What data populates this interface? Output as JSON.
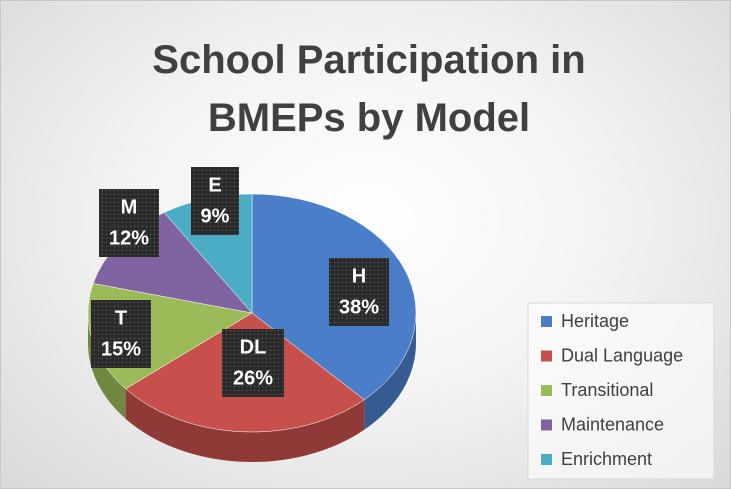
{
  "chart_data": {
    "type": "pie3d",
    "title": "School Participation in BMEPs by Model",
    "categories": [
      "Heritage",
      "Dual Language",
      "Transitional",
      "Maintenance",
      "Enrichment"
    ],
    "data_label_names": [
      "H",
      "DL",
      "T",
      "M",
      "E"
    ],
    "values": [
      38,
      26,
      15,
      12,
      9
    ],
    "value_labels": [
      "38%",
      "26%",
      "15%",
      "12%",
      "9%"
    ],
    "colors": [
      "#4a7ec8",
      "#c8504c",
      "#9bbb59",
      "#8064a2",
      "#4bacc6"
    ],
    "legend": "right"
  }
}
